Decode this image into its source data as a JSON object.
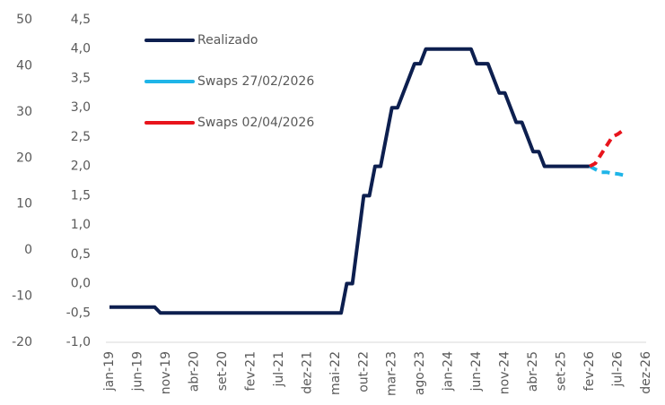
{
  "chart_data": {
    "type": "line",
    "categories": [
      "jan-19",
      null,
      null,
      null,
      null,
      "jun-19",
      null,
      null,
      null,
      null,
      "nov-19",
      null,
      null,
      null,
      null,
      "abr-20",
      null,
      null,
      null,
      null,
      "set-20",
      null,
      null,
      null,
      null,
      "fev-21",
      null,
      null,
      null,
      null,
      "jul-21",
      null,
      null,
      null,
      null,
      "dez-21",
      null,
      null,
      null,
      null,
      "mai-22",
      null,
      null,
      null,
      null,
      "out-22",
      null,
      null,
      null,
      null,
      "mar-23",
      null,
      null,
      null,
      null,
      "ago-23",
      null,
      null,
      null,
      null,
      "jan-24",
      null,
      null,
      null,
      null,
      "jun-24",
      null,
      null,
      null,
      null,
      "nov-24",
      null,
      null,
      null,
      null,
      "abr-25",
      null,
      null,
      null,
      null,
      "set-25",
      null,
      null,
      null,
      null,
      "fev-26",
      null,
      null,
      null,
      null,
      "jul-26",
      null,
      null,
      null,
      null,
      "dez-26"
    ],
    "series": [
      {
        "name": "Realizado",
        "color": "#0d1f4f",
        "dashed": false,
        "values": [
          -0.4,
          -0.4,
          -0.4,
          -0.4,
          -0.4,
          -0.4,
          -0.4,
          -0.4,
          -0.4,
          -0.5,
          -0.5,
          -0.5,
          -0.5,
          -0.5,
          -0.5,
          -0.5,
          -0.5,
          -0.5,
          -0.5,
          -0.5,
          -0.5,
          -0.5,
          -0.5,
          -0.5,
          -0.5,
          -0.5,
          -0.5,
          -0.5,
          -0.5,
          -0.5,
          -0.5,
          -0.5,
          -0.5,
          -0.5,
          -0.5,
          -0.5,
          -0.5,
          -0.5,
          -0.5,
          -0.5,
          -0.5,
          -0.5,
          0,
          0,
          0.75,
          1.5,
          1.5,
          2,
          2,
          2.5,
          3,
          3,
          3.25,
          3.5,
          3.75,
          3.75,
          4,
          4,
          4,
          4,
          4,
          4,
          4,
          4,
          4,
          3.75,
          3.75,
          3.75,
          3.5,
          3.25,
          3.25,
          3,
          2.75,
          2.75,
          2.5,
          2.25,
          2.25,
          2,
          2,
          2,
          2,
          2,
          2,
          2,
          2,
          2,
          null,
          null,
          null,
          null,
          null,
          null,
          null,
          null,
          null,
          null
        ]
      },
      {
        "name": "Swaps 27/02/2026",
        "color": "#1fb5e8",
        "dashed": true,
        "values": [
          null,
          null,
          null,
          null,
          null,
          null,
          null,
          null,
          null,
          null,
          null,
          null,
          null,
          null,
          null,
          null,
          null,
          null,
          null,
          null,
          null,
          null,
          null,
          null,
          null,
          null,
          null,
          null,
          null,
          null,
          null,
          null,
          null,
          null,
          null,
          null,
          null,
          null,
          null,
          null,
          null,
          null,
          null,
          null,
          null,
          null,
          null,
          null,
          null,
          null,
          null,
          null,
          null,
          null,
          null,
          null,
          null,
          null,
          null,
          null,
          null,
          null,
          null,
          null,
          null,
          null,
          null,
          null,
          null,
          null,
          null,
          null,
          null,
          null,
          null,
          null,
          null,
          null,
          null,
          null,
          null,
          null,
          null,
          null,
          null,
          2,
          1.95,
          1.9,
          1.9,
          1.88,
          1.87,
          1.85,
          null,
          null,
          null,
          null
        ]
      },
      {
        "name": "Swaps 02/04/2026",
        "color": "#e8141c",
        "dashed": true,
        "values": [
          null,
          null,
          null,
          null,
          null,
          null,
          null,
          null,
          null,
          null,
          null,
          null,
          null,
          null,
          null,
          null,
          null,
          null,
          null,
          null,
          null,
          null,
          null,
          null,
          null,
          null,
          null,
          null,
          null,
          null,
          null,
          null,
          null,
          null,
          null,
          null,
          null,
          null,
          null,
          null,
          null,
          null,
          null,
          null,
          null,
          null,
          null,
          null,
          null,
          null,
          null,
          null,
          null,
          null,
          null,
          null,
          null,
          null,
          null,
          null,
          null,
          null,
          null,
          null,
          null,
          null,
          null,
          null,
          null,
          null,
          null,
          null,
          null,
          null,
          null,
          null,
          null,
          null,
          null,
          null,
          null,
          null,
          null,
          null,
          null,
          2,
          2.05,
          2.2,
          2.35,
          2.5,
          2.55,
          2.62,
          null,
          null,
          null,
          null
        ]
      }
    ],
    "ylim": [
      -1,
      4.5
    ],
    "yticks": [
      {
        "value": -1,
        "label": "-1,0"
      },
      {
        "value": -0.5,
        "label": "-0,5"
      },
      {
        "value": 0,
        "label": "0,0"
      },
      {
        "value": 0.5,
        "label": "0,5"
      },
      {
        "value": 1,
        "label": "1,0"
      },
      {
        "value": 1.5,
        "label": "1,5"
      },
      {
        "value": 2,
        "label": "2,0"
      },
      {
        "value": 2.5,
        "label": "2,5"
      },
      {
        "value": 3,
        "label": "3,0"
      },
      {
        "value": 3.5,
        "label": "3,5"
      },
      {
        "value": 4,
        "label": "4,0"
      },
      {
        "value": 4.5,
        "label": "4,5"
      }
    ],
    "y2lim": [
      -20,
      50
    ],
    "y2ticks": [
      -20,
      -10,
      0,
      10,
      20,
      30,
      40,
      50
    ],
    "grid": false,
    "legend": "top-left"
  }
}
